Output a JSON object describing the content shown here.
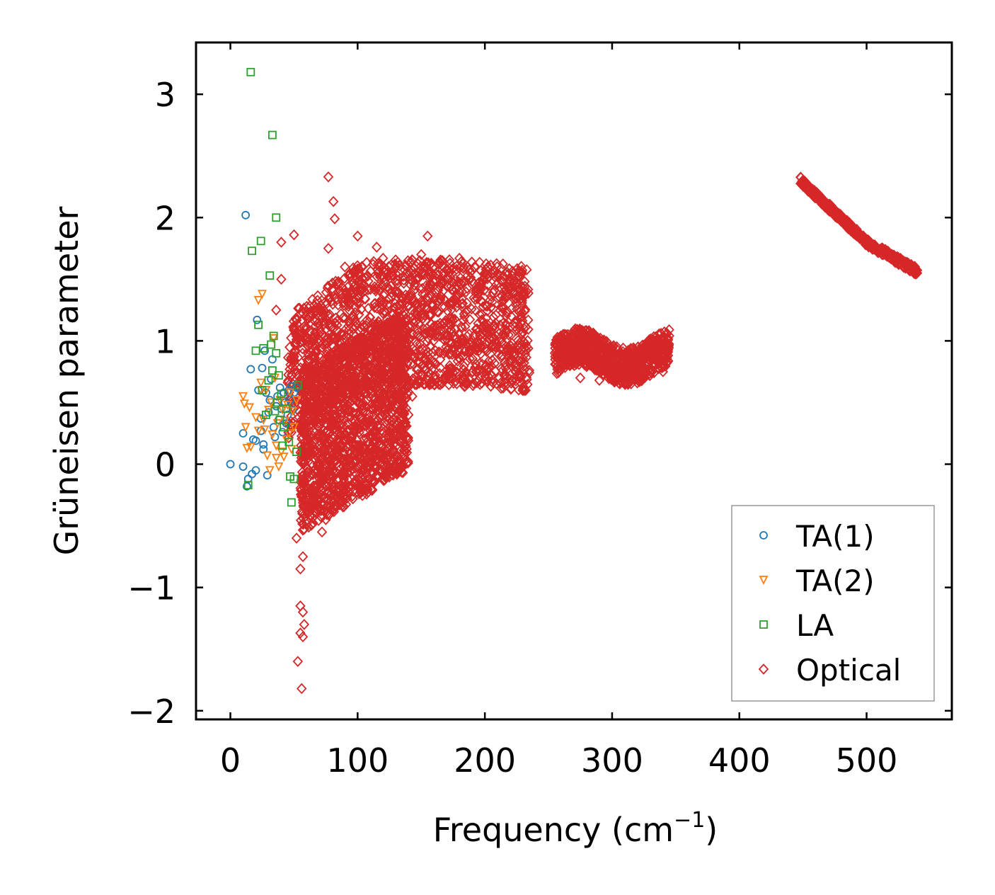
{
  "chart_data": {
    "type": "scatter",
    "title": "",
    "xlabel": "Frequency (cm",
    "xlabel_sup": "−1",
    "xlabel_close": ")",
    "ylabel": "Grüneisen parameter",
    "xlim": [
      -27,
      567
    ],
    "ylim": [
      -2.07,
      3.42
    ],
    "xticks": [
      0,
      100,
      200,
      300,
      400,
      500
    ],
    "xtick_labels": [
      "0",
      "100",
      "200",
      "300",
      "400",
      "500"
    ],
    "yticks": [
      -2,
      -1,
      0,
      1,
      2,
      3
    ],
    "ytick_labels": [
      "−2",
      "−1",
      "0",
      "1",
      "2",
      "3"
    ],
    "grid": false,
    "legend_position": "lower-right",
    "series": [
      {
        "name": "TA(1)",
        "marker": "circle",
        "color": "#1f77b4",
        "points": [
          [
            0,
            0
          ],
          [
            10,
            -0.02
          ],
          [
            12,
            2.02
          ],
          [
            13,
            -0.18
          ],
          [
            14,
            -0.12
          ],
          [
            16,
            0.77
          ],
          [
            17,
            -0.08
          ],
          [
            18,
            0.2
          ],
          [
            20,
            0.19
          ],
          [
            20,
            -0.05
          ],
          [
            21,
            1.17
          ],
          [
            22,
            0.6
          ],
          [
            24,
            0.37
          ],
          [
            24,
            0.27
          ],
          [
            25,
            0.78
          ],
          [
            26,
            0.12
          ],
          [
            26,
            0.16
          ],
          [
            27,
            0.92
          ],
          [
            28,
            0.58
          ],
          [
            29,
            -0.09
          ],
          [
            30,
            0.42
          ],
          [
            31,
            0.52
          ],
          [
            32,
            0.69
          ],
          [
            33,
            0.85
          ],
          [
            34,
            0.3
          ],
          [
            35,
            0.22
          ],
          [
            36,
            0.47
          ],
          [
            37,
            0.55
          ],
          [
            38,
            0.36
          ],
          [
            39,
            0.62
          ],
          [
            40,
            0.45
          ],
          [
            41,
            0.26
          ],
          [
            42,
            0.58
          ],
          [
            43,
            0.5
          ],
          [
            44,
            0.33
          ],
          [
            45,
            0.4
          ],
          [
            46,
            0.6
          ],
          [
            47,
            0.52
          ],
          [
            48,
            0.63
          ],
          [
            49,
            0.44
          ],
          [
            50,
            0.58
          ],
          [
            52,
            0.62
          ],
          [
            10,
            0.25
          ]
        ]
      },
      {
        "name": "TA(2)",
        "marker": "triangle-down",
        "color": "#ff7f0e",
        "points": [
          [
            10,
            0.55
          ],
          [
            11,
            0.49
          ],
          [
            12,
            0.3
          ],
          [
            13,
            0.13
          ],
          [
            15,
            0.46
          ],
          [
            16,
            0.14
          ],
          [
            20,
            0.38
          ],
          [
            22,
            1.33
          ],
          [
            24,
            0.66
          ],
          [
            25,
            1.38
          ],
          [
            26,
            0.36
          ],
          [
            27,
            0.28
          ],
          [
            28,
            0.6
          ],
          [
            29,
            0.07
          ],
          [
            30,
            0.44
          ],
          [
            31,
            -0.05
          ],
          [
            32,
            0.5
          ],
          [
            33,
            0.24
          ],
          [
            34,
            1.02
          ],
          [
            35,
            0.7
          ],
          [
            36,
            0.15
          ],
          [
            37,
            0.33
          ],
          [
            38,
            -0.02
          ],
          [
            39,
            0.52
          ],
          [
            40,
            0.1
          ],
          [
            41,
            0.44
          ],
          [
            42,
            0.06
          ],
          [
            43,
            0.35
          ],
          [
            44,
            0.2
          ],
          [
            45,
            0.48
          ],
          [
            46,
            0.25
          ],
          [
            47,
            0.58
          ],
          [
            48,
            0.12
          ],
          [
            49,
            0.43
          ],
          [
            50,
            0.3
          ],
          [
            52,
            0.52
          ],
          [
            22,
            0.27
          ],
          [
            24,
            0.6
          ],
          [
            36,
            0.05
          ]
        ]
      },
      {
        "name": "LA",
        "marker": "square",
        "color": "#2ca02c",
        "points": [
          [
            16,
            3.18
          ],
          [
            33,
            2.67
          ],
          [
            36,
            2.0
          ],
          [
            17,
            1.73
          ],
          [
            24,
            1.81
          ],
          [
            31,
            1.53
          ],
          [
            20,
            0.92
          ],
          [
            22,
            1.13
          ],
          [
            26,
            0.94
          ],
          [
            30,
            0.68
          ],
          [
            32,
            0.97
          ],
          [
            33,
            0.76
          ],
          [
            34,
            1.04
          ],
          [
            35,
            0.43
          ],
          [
            36,
            0.9
          ],
          [
            37,
            0.5
          ],
          [
            38,
            0.72
          ],
          [
            39,
            0.36
          ],
          [
            40,
            0.57
          ],
          [
            42,
            0.3
          ],
          [
            44,
            0.45
          ],
          [
            46,
            0.18
          ],
          [
            47,
            -0.1
          ],
          [
            48,
            -0.31
          ],
          [
            50,
            -0.12
          ],
          [
            52,
            0.1
          ],
          [
            53,
            0.64
          ],
          [
            14,
            -0.17
          ],
          [
            25,
            0.6
          ],
          [
            28,
            0.4
          ],
          [
            41,
            0.15
          ]
        ]
      },
      {
        "name": "Optical",
        "marker": "diamond",
        "color": "#d62728",
        "points": [
          [
            77,
            2.33
          ],
          [
            81,
            2.13
          ],
          [
            82,
            1.99
          ],
          [
            77,
            1.75
          ],
          [
            40,
            1.8
          ],
          [
            50,
            1.86
          ],
          [
            40,
            1.5
          ],
          [
            36,
            1.25
          ],
          [
            60,
            1.28
          ],
          [
            90,
            1.6
          ],
          [
            100,
            1.85
          ],
          [
            115,
            1.76
          ],
          [
            120,
            1.67
          ],
          [
            150,
            1.7
          ],
          [
            155,
            1.85
          ],
          [
            180,
            1.67
          ],
          [
            200,
            1.55
          ],
          [
            55,
            -1.15
          ],
          [
            57,
            -1.2
          ],
          [
            58,
            -1.3
          ],
          [
            55,
            -1.37
          ],
          [
            57,
            -1.4
          ],
          [
            53,
            -1.6
          ],
          [
            56,
            -1.82
          ],
          [
            55,
            -0.85
          ],
          [
            57,
            -0.75
          ],
          [
            52,
            -0.6
          ],
          [
            72,
            -0.55
          ],
          [
            75,
            -0.45
          ],
          [
            65,
            -0.3
          ],
          [
            78,
            -0.05
          ],
          [
            76,
            -0.28
          ],
          [
            90,
            0.2
          ],
          [
            113,
            0.2
          ],
          [
            140,
            0.4
          ],
          [
            143,
            0.55
          ],
          [
            152,
            0.65
          ],
          [
            165,
            0.85
          ],
          [
            175,
            0.95
          ],
          [
            185,
            0.75
          ],
          [
            193,
            0.75
          ],
          [
            208,
            1.1
          ],
          [
            226,
            0.97
          ],
          [
            275,
            0.7
          ],
          [
            290,
            0.68
          ],
          [
            340,
            0.75
          ],
          [
            520,
            1.7
          ]
        ],
        "clusters": [
          {
            "x": [
              45,
              235
            ],
            "y": [
              0.3,
              1.5
            ],
            "shape": "cloud"
          },
          {
            "x": [
              55,
              140
            ],
            "y": [
              -0.5,
              1.2
            ],
            "shape": "cloud"
          },
          {
            "x": [
              255,
              345
            ],
            "y": [
              0.7,
              1.05
            ],
            "shape": "band"
          },
          {
            "x": [
              448,
              540
            ],
            "y": [
              1.56,
              2.3
            ],
            "shape": "line"
          }
        ]
      }
    ]
  }
}
